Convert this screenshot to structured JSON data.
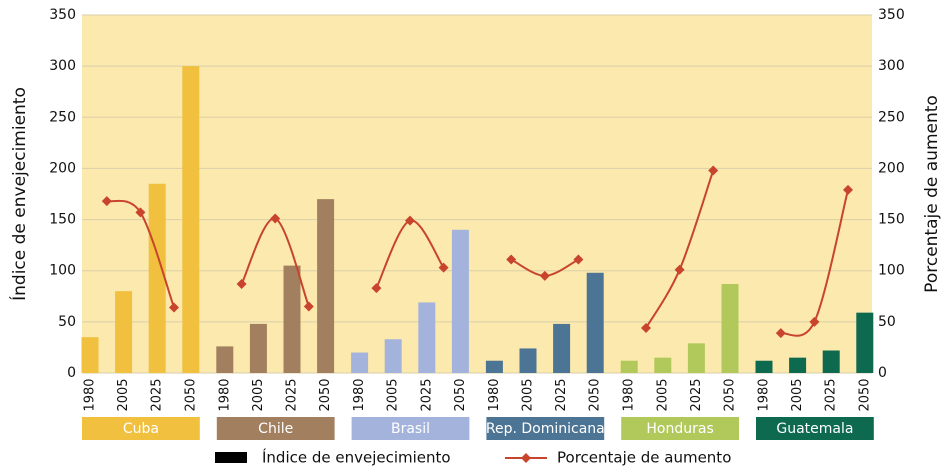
{
  "chart_data": {
    "type": "bar",
    "y_label": "Índice de envejecimiento",
    "y2_label": "Porcentaje de aumento",
    "categories": [
      "Cuba",
      "Chile",
      "Brasil",
      "Rep. Dominicana",
      "Honduras",
      "Guatemala"
    ],
    "category_colors": [
      "#f0c03e",
      "#a2805f",
      "#a3b3dc",
      "#4c7494",
      "#b1c95b",
      "#0d6a4f"
    ],
    "years": [
      "1980",
      "2005",
      "2025",
      "2050"
    ],
    "series": [
      {
        "name": "Índice de envejecimiento",
        "color": "#000000",
        "values": [
          [
            35,
            80,
            185,
            300
          ],
          [
            26,
            48,
            105,
            170
          ],
          [
            20,
            33,
            69,
            140
          ],
          [
            12,
            24,
            48,
            98
          ],
          [
            12,
            15,
            29,
            87
          ],
          [
            12,
            15,
            22,
            59
          ]
        ]
      },
      {
        "name": "Porcentaje de aumento",
        "color": "#c8442c",
        "axis": "y2",
        "values": [
          [
            168,
            157,
            64
          ],
          [
            87,
            151,
            65
          ],
          [
            83,
            149,
            103
          ],
          [
            111,
            95,
            111
          ],
          [
            44,
            101,
            198
          ],
          [
            39,
            50,
            179
          ]
        ]
      }
    ],
    "ylim": [
      0,
      350
    ],
    "yticks": [
      0,
      50,
      100,
      150,
      200,
      250,
      300,
      350
    ],
    "y2lim": [
      0,
      350
    ],
    "y2ticks": [
      0,
      50,
      100,
      150,
      200,
      250,
      300,
      350
    ],
    "grid": true
  }
}
